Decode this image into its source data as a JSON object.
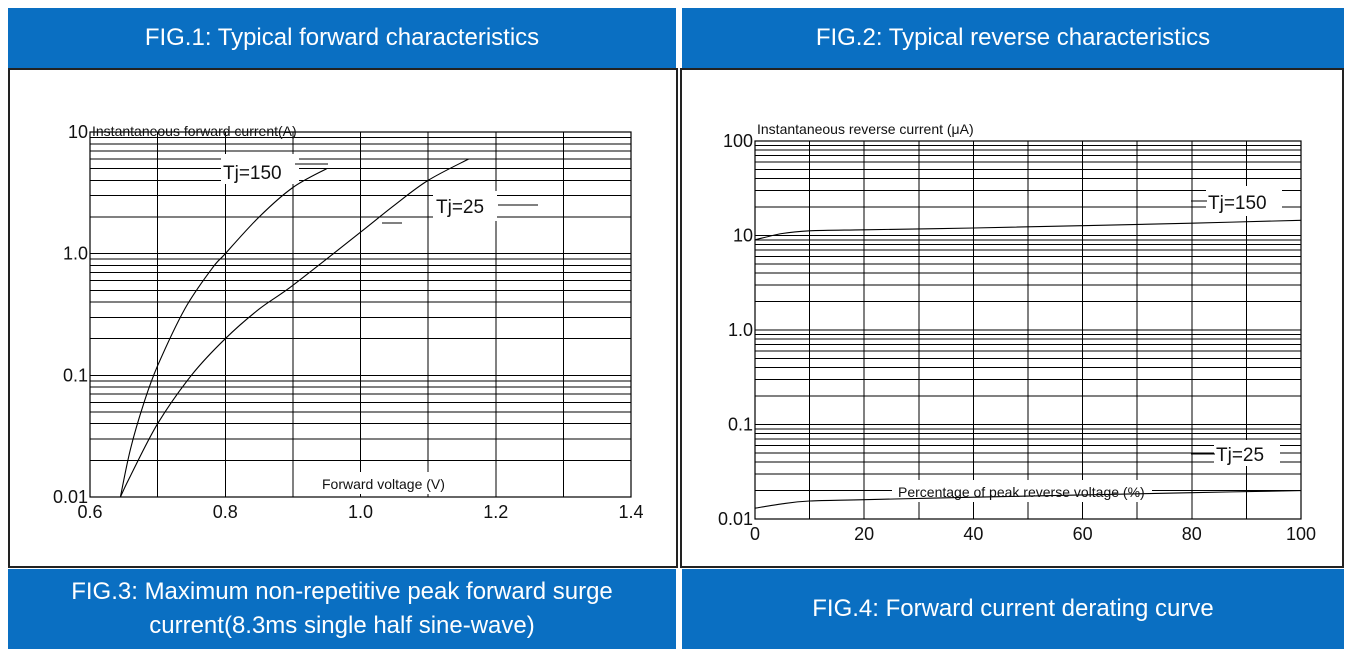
{
  "colors": {
    "header_bg": "#0a6fc2",
    "header_text": "#ffffff",
    "grid": "#000000"
  },
  "headers": {
    "fig1": "FIG.1: Typical forward characteristics",
    "fig2": "FIG.2: Typical reverse characteristics",
    "fig3_line1": "FIG.3: Maximum non-repetitive peak forward surge",
    "fig3_line2": "current(8.3ms single half sine-wave)",
    "fig4": "FIG.4: Forward current derating curve"
  },
  "chart_data": [
    {
      "type": "line",
      "y_scale": "log",
      "ylabel": "Instantaneous forward current(A)",
      "xlabel": "Forward voltage (V)",
      "xlim": [
        0.6,
        1.4
      ],
      "ylim": [
        0.01,
        10
      ],
      "x_ticks": [
        "0.6",
        "0.8",
        "1.0",
        "1.2",
        "1.4"
      ],
      "y_ticks": [
        "0.01",
        "0.1",
        "1.0",
        "10"
      ],
      "grid": true,
      "series": [
        {
          "name": "Tj=150",
          "x": [
            0.645,
            0.66,
            0.68,
            0.7,
            0.74,
            0.78,
            0.8,
            0.85,
            0.9,
            0.95
          ],
          "y": [
            0.01,
            0.025,
            0.06,
            0.12,
            0.35,
            0.75,
            1.0,
            2.0,
            3.5,
            5.0
          ]
        },
        {
          "name": "Tj=25",
          "x": [
            0.645,
            0.66,
            0.7,
            0.75,
            0.8,
            0.85,
            0.9,
            1.0,
            1.05,
            1.1,
            1.16
          ],
          "y": [
            0.01,
            0.015,
            0.04,
            0.1,
            0.2,
            0.35,
            0.55,
            1.5,
            2.5,
            4.0,
            6.0
          ]
        }
      ]
    },
    {
      "type": "line",
      "y_scale": "log",
      "ylabel": "Instantaneous reverse current (μA)",
      "xlabel": "Percentage of peak reverse voltage (%)",
      "xlim": [
        0,
        100
      ],
      "ylim": [
        0.01,
        100
      ],
      "x_ticks": [
        "0",
        "20",
        "40",
        "60",
        "80",
        "100"
      ],
      "y_ticks": [
        "0.01",
        "0.1",
        "1.0",
        "10",
        "100"
      ],
      "grid": true,
      "series": [
        {
          "name": "Tj=150",
          "x": [
            0,
            5,
            10,
            20,
            40,
            60,
            80,
            100
          ],
          "y": [
            9.0,
            10.5,
            11.2,
            11.5,
            12.0,
            12.7,
            13.5,
            14.5
          ]
        },
        {
          "name": "Tj=25",
          "x": [
            0,
            5,
            10,
            20,
            40,
            60,
            80,
            100
          ],
          "y": [
            0.013,
            0.0145,
            0.0155,
            0.016,
            0.017,
            0.018,
            0.019,
            0.02
          ]
        }
      ]
    }
  ]
}
